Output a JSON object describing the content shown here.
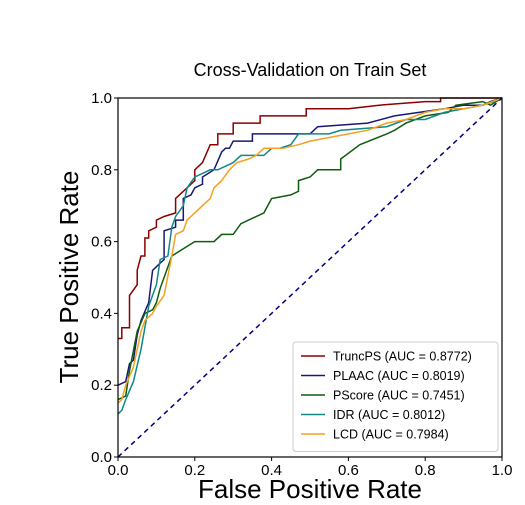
{
  "chart_data": {
    "type": "line",
    "title": "Cross-Validation on Train Set",
    "xlabel": "False Positive Rate",
    "ylabel": "True Positive Rate",
    "xlim": [
      0.0,
      1.0
    ],
    "ylim": [
      0.0,
      1.0
    ],
    "xticks": [
      "0.0",
      "0.2",
      "0.4",
      "0.6",
      "0.8",
      "1.0"
    ],
    "yticks": [
      "0.0",
      "0.2",
      "0.4",
      "0.6",
      "0.8",
      "1.0"
    ],
    "grid": false,
    "legend_position": "lower-right",
    "series": [
      {
        "name": "TruncPS (AUC = 0.8772)",
        "color": "#8b0000",
        "points": [
          [
            0,
            0.33
          ],
          [
            0.01,
            0.33
          ],
          [
            0.01,
            0.36
          ],
          [
            0.03,
            0.36
          ],
          [
            0.03,
            0.45
          ],
          [
            0.05,
            0.48
          ],
          [
            0.05,
            0.52
          ],
          [
            0.06,
            0.56
          ],
          [
            0.07,
            0.56
          ],
          [
            0.07,
            0.61
          ],
          [
            0.08,
            0.61
          ],
          [
            0.08,
            0.63
          ],
          [
            0.1,
            0.64
          ],
          [
            0.1,
            0.66
          ],
          [
            0.12,
            0.67
          ],
          [
            0.15,
            0.68
          ],
          [
            0.15,
            0.72
          ],
          [
            0.17,
            0.74
          ],
          [
            0.18,
            0.75
          ],
          [
            0.2,
            0.77
          ],
          [
            0.2,
            0.8
          ],
          [
            0.22,
            0.82
          ],
          [
            0.24,
            0.87
          ],
          [
            0.26,
            0.87
          ],
          [
            0.26,
            0.9
          ],
          [
            0.3,
            0.9
          ],
          [
            0.3,
            0.93
          ],
          [
            0.37,
            0.93
          ],
          [
            0.37,
            0.95
          ],
          [
            0.49,
            0.95
          ],
          [
            0.49,
            0.97
          ],
          [
            0.6,
            0.97
          ],
          [
            0.68,
            0.98
          ],
          [
            0.8,
            0.99
          ],
          [
            0.84,
            0.99
          ],
          [
            0.84,
            1.0
          ],
          [
            1.0,
            1.0
          ]
        ]
      },
      {
        "name": "PLAAC (AUC = 0.8019)",
        "color": "#191970",
        "points": [
          [
            0,
            0.2
          ],
          [
            0.02,
            0.21
          ],
          [
            0.03,
            0.26
          ],
          [
            0.04,
            0.27
          ],
          [
            0.05,
            0.34
          ],
          [
            0.06,
            0.38
          ],
          [
            0.08,
            0.43
          ],
          [
            0.09,
            0.52
          ],
          [
            0.11,
            0.54
          ],
          [
            0.12,
            0.55
          ],
          [
            0.12,
            0.63
          ],
          [
            0.15,
            0.64
          ],
          [
            0.15,
            0.66
          ],
          [
            0.17,
            0.66
          ],
          [
            0.17,
            0.72
          ],
          [
            0.19,
            0.73
          ],
          [
            0.2,
            0.75
          ],
          [
            0.22,
            0.76
          ],
          [
            0.22,
            0.78
          ],
          [
            0.25,
            0.8
          ],
          [
            0.27,
            0.85
          ],
          [
            0.28,
            0.86
          ],
          [
            0.29,
            0.86
          ],
          [
            0.3,
            0.88
          ],
          [
            0.35,
            0.88
          ],
          [
            0.35,
            0.9
          ],
          [
            0.4,
            0.9
          ],
          [
            0.5,
            0.9
          ],
          [
            0.52,
            0.92
          ],
          [
            0.65,
            0.93
          ],
          [
            0.72,
            0.95
          ],
          [
            0.85,
            0.97
          ],
          [
            0.9,
            0.98
          ],
          [
            0.95,
            0.98
          ],
          [
            0.97,
            0.99
          ],
          [
            1.0,
            1.0
          ]
        ]
      },
      {
        "name": "PScore (AUC = 0.7451)",
        "color": "#0f5c0f",
        "points": [
          [
            0,
            0.16
          ],
          [
            0.02,
            0.17
          ],
          [
            0.03,
            0.24
          ],
          [
            0.05,
            0.35
          ],
          [
            0.07,
            0.4
          ],
          [
            0.09,
            0.41
          ],
          [
            0.1,
            0.43
          ],
          [
            0.11,
            0.47
          ],
          [
            0.14,
            0.56
          ],
          [
            0.17,
            0.58
          ],
          [
            0.2,
            0.6
          ],
          [
            0.25,
            0.6
          ],
          [
            0.27,
            0.62
          ],
          [
            0.3,
            0.62
          ],
          [
            0.32,
            0.65
          ],
          [
            0.38,
            0.68
          ],
          [
            0.4,
            0.72
          ],
          [
            0.45,
            0.73
          ],
          [
            0.47,
            0.74
          ],
          [
            0.47,
            0.77
          ],
          [
            0.5,
            0.78
          ],
          [
            0.52,
            0.8
          ],
          [
            0.58,
            0.8
          ],
          [
            0.58,
            0.83
          ],
          [
            0.63,
            0.87
          ],
          [
            0.7,
            0.9
          ],
          [
            0.72,
            0.91
          ],
          [
            0.75,
            0.93
          ],
          [
            0.8,
            0.95
          ],
          [
            0.86,
            0.96
          ],
          [
            0.88,
            0.98
          ],
          [
            0.95,
            0.99
          ],
          [
            0.97,
            0.98
          ],
          [
            1.0,
            1.0
          ]
        ]
      },
      {
        "name": "IDR (AUC = 0.8012)",
        "color": "#128989",
        "points": [
          [
            0,
            0.12
          ],
          [
            0.01,
            0.13
          ],
          [
            0.02,
            0.16
          ],
          [
            0.04,
            0.21
          ],
          [
            0.06,
            0.3
          ],
          [
            0.08,
            0.42
          ],
          [
            0.1,
            0.48
          ],
          [
            0.11,
            0.55
          ],
          [
            0.13,
            0.56
          ],
          [
            0.14,
            0.64
          ],
          [
            0.15,
            0.67
          ],
          [
            0.17,
            0.7
          ],
          [
            0.18,
            0.75
          ],
          [
            0.2,
            0.78
          ],
          [
            0.22,
            0.79
          ],
          [
            0.24,
            0.8
          ],
          [
            0.26,
            0.8
          ],
          [
            0.28,
            0.81
          ],
          [
            0.3,
            0.82
          ],
          [
            0.32,
            0.84
          ],
          [
            0.38,
            0.84
          ],
          [
            0.4,
            0.86
          ],
          [
            0.42,
            0.86
          ],
          [
            0.45,
            0.87
          ],
          [
            0.47,
            0.9
          ],
          [
            0.55,
            0.9
          ],
          [
            0.58,
            0.91
          ],
          [
            0.7,
            0.92
          ],
          [
            0.75,
            0.94
          ],
          [
            0.8,
            0.94
          ],
          [
            0.85,
            0.96
          ],
          [
            0.9,
            0.97
          ],
          [
            0.95,
            0.98
          ],
          [
            0.98,
            0.99
          ],
          [
            1.0,
            1.0
          ]
        ]
      },
      {
        "name": "LCD (AUC = 0.7984)",
        "color": "#f5a020",
        "points": [
          [
            0,
            0.15
          ],
          [
            0.01,
            0.16
          ],
          [
            0.02,
            0.2
          ],
          [
            0.04,
            0.25
          ],
          [
            0.06,
            0.35
          ],
          [
            0.07,
            0.38
          ],
          [
            0.09,
            0.4
          ],
          [
            0.1,
            0.42
          ],
          [
            0.12,
            0.45
          ],
          [
            0.14,
            0.56
          ],
          [
            0.15,
            0.62
          ],
          [
            0.17,
            0.63
          ],
          [
            0.18,
            0.66
          ],
          [
            0.2,
            0.68
          ],
          [
            0.22,
            0.7
          ],
          [
            0.24,
            0.72
          ],
          [
            0.25,
            0.75
          ],
          [
            0.27,
            0.77
          ],
          [
            0.29,
            0.8
          ],
          [
            0.31,
            0.82
          ],
          [
            0.34,
            0.83
          ],
          [
            0.36,
            0.84
          ],
          [
            0.38,
            0.86
          ],
          [
            0.43,
            0.86
          ],
          [
            0.47,
            0.87
          ],
          [
            0.5,
            0.88
          ],
          [
            0.6,
            0.9
          ],
          [
            0.65,
            0.91
          ],
          [
            0.7,
            0.93
          ],
          [
            0.75,
            0.94
          ],
          [
            0.8,
            0.96
          ],
          [
            0.85,
            0.97
          ],
          [
            0.9,
            0.97
          ],
          [
            0.95,
            0.98
          ],
          [
            1.0,
            1.0
          ]
        ]
      }
    ],
    "reference_line": {
      "points": [
        [
          0,
          0
        ],
        [
          1,
          1
        ]
      ],
      "color": "#000080",
      "style": "dashed"
    }
  }
}
